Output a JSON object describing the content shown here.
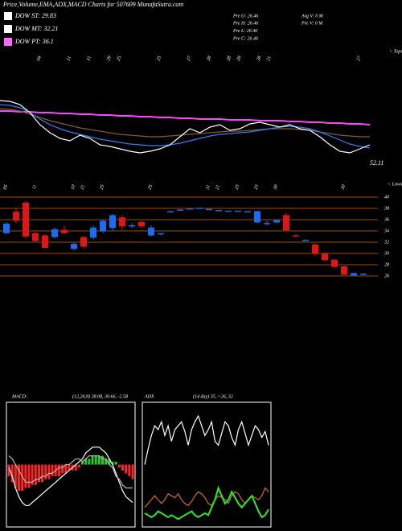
{
  "title": "Price,Volume,EMA,ADX,MACD Charts for 507609 MunafaSutra.com",
  "legend": [
    {
      "label": "DOW ST: 29.83",
      "color": "#ffffff"
    },
    {
      "label": "DOW MT: 32.21",
      "color": "#ffffff"
    },
    {
      "label": "DOW PT: 36.1",
      "color": "#ff66ff"
    }
  ],
  "info": [
    "Pre  O: 26.46",
    "Pre  H: 26.46",
    "Pre  L: 26.46",
    "Pre  C: 26.46"
  ],
  "info2": [
    "Avg V: 0  M",
    "Pre  V: 0  M"
  ],
  "chart_data": [
    {
      "type": "line",
      "label": "< Tops",
      "annotation": "52.11",
      "ylim": [
        0,
        100
      ],
      "categories": [
        null,
        null,
        null,
        null,
        "04",
        null,
        null,
        "31",
        null,
        "31",
        null,
        "29",
        "25",
        null,
        null,
        null,
        "25",
        null,
        null,
        "27",
        null,
        "28",
        null,
        "28",
        "28",
        null,
        "28",
        "21",
        null,
        null,
        null,
        null,
        null,
        null,
        null,
        null,
        "27",
        null
      ],
      "series": [
        {
          "color": "#ff44ff",
          "values": [
            72,
            72,
            71,
            71,
            70,
            70,
            69,
            69,
            68,
            68,
            67,
            67,
            66,
            66,
            65,
            65,
            64,
            64,
            63,
            63,
            62,
            62,
            62,
            61,
            61,
            61,
            60,
            60,
            60,
            59,
            59,
            58,
            58,
            57,
            57,
            56,
            56,
            55
          ]
        },
        {
          "color": "#8b5a2b",
          "values": [
            75,
            74,
            72,
            68,
            64,
            60,
            57,
            54,
            51,
            49,
            47,
            45,
            43,
            42,
            41,
            40,
            40,
            41,
            42,
            43,
            44,
            45,
            46,
            47,
            47,
            48,
            49,
            50,
            50,
            50,
            49,
            48,
            46,
            44,
            42,
            41,
            40,
            40
          ]
        },
        {
          "color": "#2a7fff",
          "values": [
            80,
            79,
            76,
            70,
            62,
            55,
            50,
            46,
            43,
            40,
            37,
            35,
            33,
            31,
            30,
            29,
            29,
            30,
            32,
            35,
            38,
            41,
            43,
            44,
            45,
            46,
            48,
            50,
            52,
            53,
            52,
            50,
            46,
            41,
            36,
            31,
            28,
            26
          ]
        },
        {
          "color": "#ffffff",
          "values": [
            85,
            84,
            80,
            70,
            55,
            45,
            38,
            35,
            42,
            38,
            30,
            28,
            25,
            22,
            20,
            22,
            25,
            30,
            40,
            50,
            45,
            52,
            55,
            48,
            50,
            56,
            58,
            55,
            52,
            55,
            50,
            48,
            40,
            30,
            22,
            20,
            25,
            30
          ]
        }
      ]
    },
    {
      "type": "candlestick",
      "label": "< Lows",
      "up_color": "#1a6cf0",
      "down_color": "#e01515",
      "grid_color": "#c86414",
      "ylim": [
        24.5,
        42
      ],
      "yticks": [
        40,
        38,
        36,
        34,
        32,
        30,
        28,
        26
      ],
      "categories": [
        "05",
        null,
        null,
        "11",
        null,
        null,
        null,
        "10",
        "21",
        null,
        "25",
        null,
        null,
        null,
        null,
        "25",
        null,
        null,
        null,
        null,
        null,
        "31",
        "21",
        null,
        "23",
        null,
        "23",
        null,
        "30",
        null,
        null,
        null,
        null,
        null,
        null,
        "30",
        null,
        null
      ],
      "open": [
        33.6,
        37.4,
        39,
        33.6,
        33.2,
        32.9,
        34.2,
        30.8,
        32.9,
        32.8,
        33.9,
        34.5,
        36.4,
        34.8,
        35.6,
        33.2,
        33.4,
        37.5,
        37.8,
        38,
        38.1,
        37.9,
        37.7,
        37.6,
        37.6,
        37.5,
        35.5,
        35.2,
        35.5,
        36.8,
        33.2,
        32.4,
        31.6,
        30,
        28.9,
        27.7,
        26.1,
        26.2
      ],
      "high": [
        35.6,
        38.2,
        39.3,
        34,
        33.5,
        34.6,
        35,
        31.9,
        33.2,
        35,
        36,
        37,
        36.8,
        35.4,
        35.8,
        35,
        33.6,
        37.6,
        37.9,
        38,
        38.1,
        37.9,
        37.7,
        37.6,
        37.6,
        37.5,
        37.6,
        35.8,
        36,
        37.2,
        33.4,
        32.5,
        31.8,
        30.2,
        29,
        27.8,
        26.6,
        26.5
      ],
      "low": [
        33.4,
        35.4,
        32.6,
        32,
        30.8,
        32.6,
        33.4,
        30.5,
        30.8,
        32.4,
        33.6,
        34,
        34.2,
        34.5,
        34.4,
        33,
        33.2,
        37.4,
        37.7,
        38,
        38.1,
        37.9,
        37.7,
        37.6,
        37.6,
        37.5,
        35.4,
        35,
        35.4,
        33.9,
        33,
        32.3,
        29.6,
        28.6,
        27.5,
        26.1,
        26,
        26.1
      ],
      "close": [
        35.3,
        35.8,
        33,
        32.2,
        31,
        34.3,
        33.6,
        31.7,
        31.2,
        34.6,
        35.8,
        36.8,
        34.8,
        35,
        34.8,
        34.6,
        33.6,
        37.5,
        37.8,
        38,
        38.1,
        37.9,
        37.7,
        37.6,
        37.6,
        37.5,
        37.5,
        35.4,
        35.9,
        34.1,
        33.1,
        32.4,
        29.9,
        28.8,
        27.6,
        26.2,
        26.5,
        26.4
      ]
    },
    {
      "type": "macd",
      "title": "MACD:",
      "subtitle": "(12,26,9) 28.08, 30.66, -2.58",
      "ylim": [
        -10,
        10
      ],
      "hist_up_color": "#22cc22",
      "hist_down_color": "#ff2222",
      "histogram": [
        -2,
        -3,
        -4,
        -4.5,
        -4.5,
        -4,
        -4,
        -3.5,
        -3.5,
        -3,
        -3,
        -2.5,
        -2.5,
        -2,
        -2,
        -2,
        -1.5,
        -1.5,
        -1,
        -1,
        -1,
        -0.5,
        0.5,
        1,
        1,
        1.5,
        1.5,
        1.5,
        1.5,
        1,
        1,
        0.5,
        0.5,
        -0.5,
        -1,
        -1.5,
        -2,
        -2.5
      ],
      "series": [
        {
          "color": "#ffffff",
          "values": [
            -0.5,
            -2,
            -4,
            -5.5,
            -6.5,
            -7,
            -7,
            -6.5,
            -6,
            -5.5,
            -5,
            -4.5,
            -4,
            -3.5,
            -3,
            -2.5,
            -2,
            -1.5,
            -1,
            -0.5,
            0,
            0.5,
            1,
            2,
            2.5,
            3,
            3,
            3,
            2.5,
            2,
            1,
            0,
            -1.5,
            -3,
            -4.5,
            -5.5,
            -6,
            -6.5
          ]
        },
        {
          "color": "#bbbbbb",
          "values": [
            1.5,
            1,
            0,
            -1,
            -2,
            -3,
            -3,
            -3,
            -2.5,
            -2.5,
            -2,
            -2,
            -1.5,
            -1.5,
            -1,
            -0.5,
            -0.5,
            0,
            0,
            0.5,
            1,
            1,
            0.5,
            1,
            1.5,
            1.5,
            1.5,
            1.5,
            1,
            1,
            0,
            -0.5,
            -2,
            -2.5,
            -3.5,
            -4,
            -4,
            -4
          ]
        }
      ]
    },
    {
      "type": "adx",
      "title": "ADX",
      "subtitle": "(14 day) 35, +26, 32",
      "ylim": [
        0,
        60
      ],
      "series": [
        {
          "color": "#ffffff",
          "values": [
            30,
            38,
            45,
            50,
            48,
            52,
            45,
            50,
            42,
            48,
            50,
            52,
            47,
            40,
            48,
            52,
            55,
            50,
            45,
            48,
            52,
            42,
            40,
            46,
            52,
            50,
            44,
            40,
            48,
            52,
            46,
            40,
            45,
            50,
            48,
            44,
            47,
            40
          ]
        },
        {
          "color": "#d07010",
          "values": [
            8,
            10,
            12,
            14,
            12,
            10,
            12,
            15,
            14,
            13,
            15,
            12,
            10,
            9,
            11,
            14,
            16,
            15,
            13,
            10,
            9,
            12,
            14,
            13,
            12,
            10,
            14,
            16,
            15,
            12,
            10,
            12,
            14,
            13,
            12,
            14,
            18,
            16
          ]
        },
        {
          "color": "#22ee22",
          "values": [
            5,
            4,
            3,
            4,
            6,
            5,
            4,
            3,
            4,
            3,
            2,
            3,
            4,
            5,
            6,
            4,
            3,
            4,
            5,
            4,
            8,
            12,
            18,
            14,
            10,
            12,
            16,
            13,
            10,
            8,
            10,
            12,
            14,
            10,
            6,
            3,
            4,
            7
          ]
        }
      ]
    }
  ]
}
